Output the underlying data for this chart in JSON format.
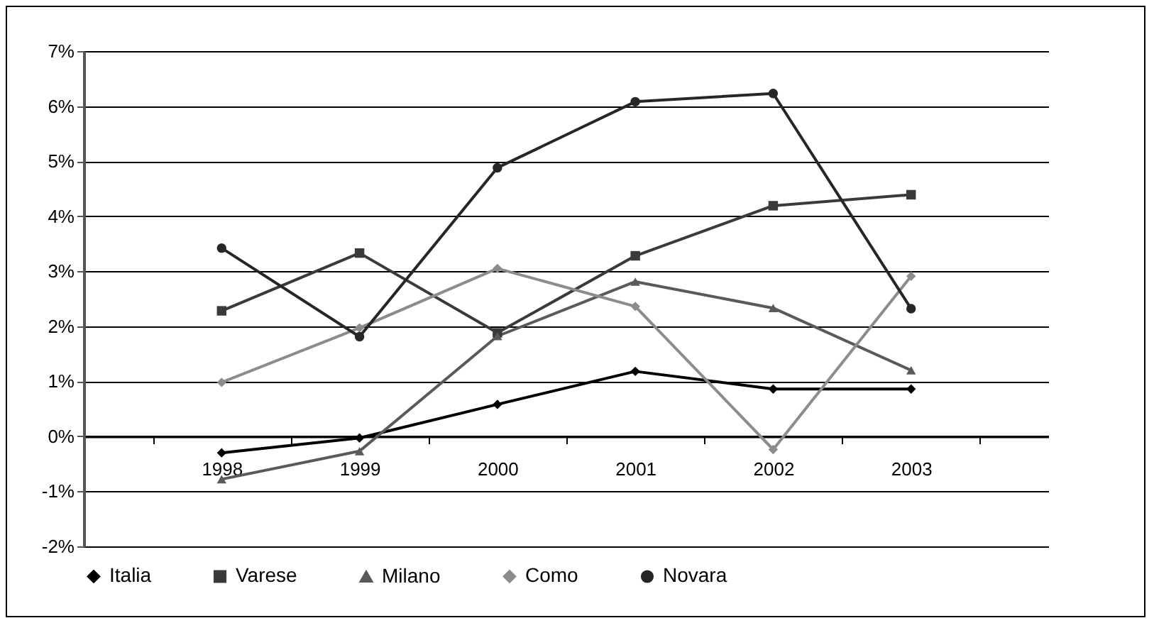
{
  "chart_data": {
    "type": "line",
    "categories": [
      "1998",
      "1999",
      "2000",
      "2001",
      "2002",
      "2003"
    ],
    "series": [
      {
        "name": "Italia",
        "color": "#000000",
        "marker": "diamond",
        "values": [
          -0.3,
          -0.03,
          0.58,
          1.18,
          0.86,
          0.86
        ]
      },
      {
        "name": "Varese",
        "color": "#3a3a3a",
        "marker": "square",
        "values": [
          2.28,
          3.33,
          1.88,
          3.28,
          4.19,
          4.39
        ]
      },
      {
        "name": "Milano",
        "color": "#5a5a5a",
        "marker": "triangle",
        "values": [
          -0.78,
          -0.27,
          1.82,
          2.81,
          2.33,
          1.2
        ]
      },
      {
        "name": "Como",
        "color": "#8c8c8c",
        "marker": "diamond",
        "values": [
          0.98,
          1.97,
          3.05,
          2.36,
          -0.24,
          2.91
        ]
      },
      {
        "name": "Novara",
        "color": "#262626",
        "marker": "circle",
        "values": [
          3.42,
          1.81,
          4.88,
          6.08,
          6.23,
          2.32
        ]
      }
    ],
    "ylim": [
      -2,
      7
    ],
    "yticks": [
      {
        "value": -2,
        "label": "-2%"
      },
      {
        "value": -1,
        "label": "-1%"
      },
      {
        "value": 0,
        "label": "0%"
      },
      {
        "value": 1,
        "label": "1%"
      },
      {
        "value": 2,
        "label": "2%"
      },
      {
        "value": 3,
        "label": "3%"
      },
      {
        "value": 4,
        "label": "4%"
      },
      {
        "value": 5,
        "label": "5%"
      },
      {
        "value": 6,
        "label": "6%"
      },
      {
        "value": 7,
        "label": "7%"
      }
    ],
    "grid": "y",
    "legend": "bottom",
    "line_style": "solid"
  }
}
